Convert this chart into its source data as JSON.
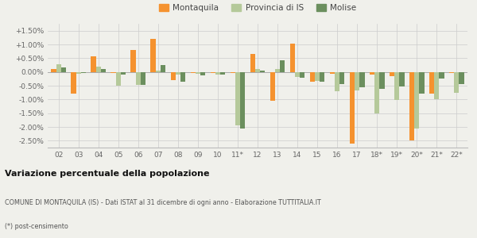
{
  "years": [
    "02",
    "03",
    "04",
    "05",
    "06",
    "07",
    "08",
    "09",
    "10",
    "11*",
    "12",
    "13",
    "14",
    "15",
    "16",
    "17",
    "18*",
    "19*",
    "20*",
    "21*",
    "22*"
  ],
  "montaquila": [
    0.1,
    -0.8,
    0.58,
    -0.05,
    0.8,
    1.2,
    -0.3,
    -0.05,
    -0.05,
    -0.05,
    0.65,
    -1.05,
    1.02,
    -0.35,
    -0.08,
    -2.62,
    -0.1,
    -0.15,
    -2.5,
    -0.8,
    -0.05
  ],
  "provincia_IS": [
    0.28,
    -0.08,
    0.18,
    -0.5,
    -0.48,
    0.05,
    -0.1,
    -0.08,
    -0.1,
    -1.95,
    0.12,
    0.1,
    -0.18,
    -0.32,
    -0.7,
    -0.68,
    -1.52,
    -1.03,
    -2.05,
    -1.0,
    -0.75
  ],
  "molise": [
    0.15,
    -0.05,
    0.12,
    -0.1,
    -0.48,
    0.25,
    -0.35,
    -0.12,
    -0.1,
    -2.05,
    0.05,
    0.42,
    -0.22,
    -0.35,
    -0.45,
    -0.55,
    -0.62,
    -0.52,
    -0.8,
    -0.25,
    -0.45
  ],
  "color_montaquila": "#f5922f",
  "color_provincia": "#b5c99a",
  "color_molise": "#6b8f5e",
  "bg_color": "#f0f0eb",
  "ylim": [
    -2.75,
    1.75
  ],
  "yticks": [
    -2.5,
    -2.0,
    -1.5,
    -1.0,
    -0.5,
    0.0,
    0.5,
    1.0,
    1.5
  ],
  "ytick_labels": [
    "-2.50%",
    "-2.00%",
    "-1.50%",
    "-1.00%",
    "-0.50%",
    "0.00%",
    "+0.50%",
    "+1.00%",
    "+1.50%"
  ],
  "title_line1": "Variazione percentuale della popolazione",
  "title_line2": "COMUNE DI MONTAQUILA (IS) - Dati ISTAT al 31 dicembre di ogni anno - Elaborazione TUTTITALIA.IT",
  "title_line3": "(*) post-censimento",
  "legend_labels": [
    "Montaquila",
    "Provincia di IS",
    "Molise"
  ]
}
